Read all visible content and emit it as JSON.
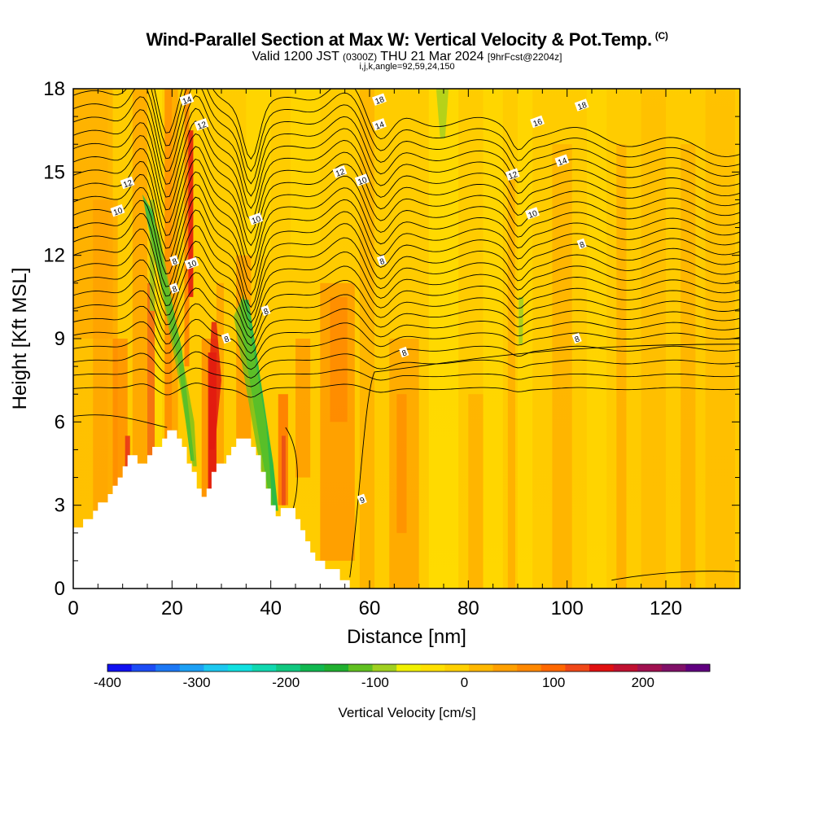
{
  "titles": {
    "main": "Wind-Parallel Section at Max W: Vertical Velocity & Pot.Temp.",
    "copyright": "(C)",
    "valid_prefix": "Valid 1200 JST",
    "valid_utc": "(0300Z)",
    "valid_day": "THU 21 Mar 2024",
    "forecast": "[9hrFcst@2204z]",
    "params": "i,j,k,angle=92,59,24,150"
  },
  "chart_data": {
    "type": "heatmap",
    "title": "Wind-Parallel Section at Max W: Vertical Velocity & Pot.Temp.",
    "xlabel": "Distance [nm]",
    "ylabel": "Height [Kft MSL]",
    "xlim": [
      0,
      135
    ],
    "ylim": [
      0,
      18
    ],
    "xticks": [
      0,
      20,
      40,
      60,
      80,
      100,
      120
    ],
    "yticks": [
      0,
      3,
      6,
      9,
      12,
      15,
      18
    ],
    "colorbar": {
      "label": "Vertical Velocity [cm/s]",
      "ticks": [
        -400,
        -300,
        -200,
        -100,
        0,
        100,
        200
      ],
      "range": [
        -400,
        275
      ],
      "colors": [
        "#1010f0",
        "#1c4cf5",
        "#1c78f5",
        "#1ca0f5",
        "#1cc8f0",
        "#10e0e0",
        "#10d8b0",
        "#10c880",
        "#10b850",
        "#20b030",
        "#60c020",
        "#a0d020",
        "#f0f000",
        "#ffe000",
        "#ffd000",
        "#ffb800",
        "#ffa000",
        "#ff8800",
        "#ff6800",
        "#f04818",
        "#e01010",
        "#c01030",
        "#a01050",
        "#801068",
        "#600080"
      ]
    },
    "terrain": [
      [
        0,
        0
      ],
      [
        0,
        2.2
      ],
      [
        2,
        2.2
      ],
      [
        2,
        2.5
      ],
      [
        4,
        2.5
      ],
      [
        4,
        2.8
      ],
      [
        5,
        2.8
      ],
      [
        5,
        3.1
      ],
      [
        7,
        3.1
      ],
      [
        7,
        3.4
      ],
      [
        8,
        3.4
      ],
      [
        8,
        3.7
      ],
      [
        9,
        3.7
      ],
      [
        9,
        4.0
      ],
      [
        10,
        4.0
      ],
      [
        10,
        4.4
      ],
      [
        11,
        4.4
      ],
      [
        11,
        4.8
      ],
      [
        13,
        4.8
      ],
      [
        13,
        4.5
      ],
      [
        15,
        4.5
      ],
      [
        15,
        4.8
      ],
      [
        16,
        4.8
      ],
      [
        16,
        5.1
      ],
      [
        18,
        5.1
      ],
      [
        18,
        5.4
      ],
      [
        19,
        5.4
      ],
      [
        19,
        5.7
      ],
      [
        21,
        5.7
      ],
      [
        21,
        5.4
      ],
      [
        22,
        5.4
      ],
      [
        22,
        5.1
      ],
      [
        23,
        5.1
      ],
      [
        23,
        4.5
      ],
      [
        24,
        4.5
      ],
      [
        24,
        4.2
      ],
      [
        25,
        4.2
      ],
      [
        25,
        3.6
      ],
      [
        26,
        3.6
      ],
      [
        26,
        3.3
      ],
      [
        27,
        3.3
      ],
      [
        27,
        3.6
      ],
      [
        28,
        3.6
      ],
      [
        28,
        4.2
      ],
      [
        29,
        4.2
      ],
      [
        29,
        4.5
      ],
      [
        31,
        4.5
      ],
      [
        31,
        4.8
      ],
      [
        32,
        4.8
      ],
      [
        32,
        5.1
      ],
      [
        33,
        5.1
      ],
      [
        33,
        5.4
      ],
      [
        36,
        5.4
      ],
      [
        36,
        5.1
      ],
      [
        37,
        5.1
      ],
      [
        37,
        4.8
      ],
      [
        38,
        4.8
      ],
      [
        38,
        4.2
      ],
      [
        39,
        4.2
      ],
      [
        39,
        3.6
      ],
      [
        40,
        3.6
      ],
      [
        40,
        3.0
      ],
      [
        41,
        3.0
      ],
      [
        41,
        2.6
      ],
      [
        42,
        2.6
      ],
      [
        42,
        2.9
      ],
      [
        45,
        2.9
      ],
      [
        45,
        2.5
      ],
      [
        46,
        2.5
      ],
      [
        46,
        2.1
      ],
      [
        47,
        2.1
      ],
      [
        47,
        1.7
      ],
      [
        48,
        1.7
      ],
      [
        48,
        1.3
      ],
      [
        49,
        1.3
      ],
      [
        49,
        1.0
      ],
      [
        51,
        1.0
      ],
      [
        51,
        0.7
      ],
      [
        54,
        0.7
      ],
      [
        54,
        0.3
      ],
      [
        56,
        0.3
      ],
      [
        56,
        0
      ],
      [
        0,
        0
      ]
    ],
    "contour_labels": [
      {
        "text": "14",
        "x": 23,
        "y": 17.6
      },
      {
        "text": "12",
        "x": 26,
        "y": 16.7
      },
      {
        "text": "12",
        "x": 11,
        "y": 14.6
      },
      {
        "text": "10",
        "x": 9,
        "y": 13.6
      },
      {
        "text": "10",
        "x": 37,
        "y": 13.3
      },
      {
        "text": "10",
        "x": 24,
        "y": 11.7
      },
      {
        "text": "8",
        "x": 20.5,
        "y": 11.8
      },
      {
        "text": "8",
        "x": 20.5,
        "y": 10.8
      },
      {
        "text": "8",
        "x": 39,
        "y": 10.0
      },
      {
        "text": "8",
        "x": 31,
        "y": 9.0
      },
      {
        "text": "18",
        "x": 62,
        "y": 17.6
      },
      {
        "text": "14",
        "x": 62,
        "y": 16.7
      },
      {
        "text": "12",
        "x": 54,
        "y": 15.0
      },
      {
        "text": "10",
        "x": 58.5,
        "y": 14.7
      },
      {
        "text": "8",
        "x": 62.5,
        "y": 11.8
      },
      {
        "text": "8",
        "x": 67,
        "y": 8.5
      },
      {
        "text": "9",
        "x": 58.5,
        "y": 3.2
      },
      {
        "text": "18",
        "x": 103,
        "y": 17.4
      },
      {
        "text": "16",
        "x": 94,
        "y": 16.8
      },
      {
        "text": "14",
        "x": 99,
        "y": 15.4
      },
      {
        "text": "12",
        "x": 89,
        "y": 14.9
      },
      {
        "text": "10",
        "x": 93,
        "y": 13.5
      },
      {
        "text": "8",
        "x": 103,
        "y": 12.4
      },
      {
        "text": "8",
        "x": 102,
        "y": 9.0
      }
    ]
  }
}
